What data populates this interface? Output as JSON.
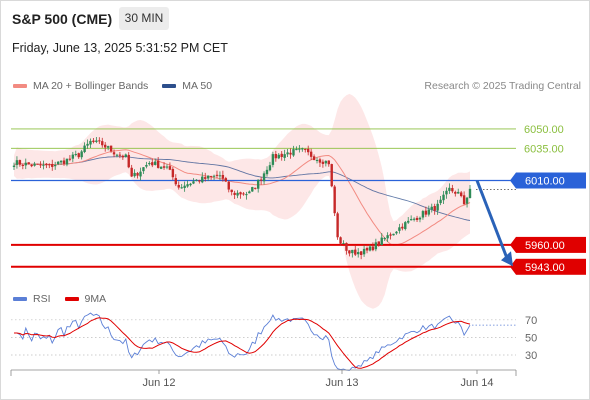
{
  "header": {
    "title": "S&P 500 (CME)",
    "timeframe": "30 MIN"
  },
  "datetime": "Friday, June 13, 2025 5:31:52 PM CET",
  "legend_main": [
    {
      "label": "MA 20 + Bollinger Bands",
      "color": "#f28b82"
    },
    {
      "label": "MA 50",
      "color": "#2d4f8c"
    }
  ],
  "research": "Research © 2025 Trading Central",
  "legend_rsi": [
    {
      "label": "RSI",
      "color": "#5b7fd6"
    },
    {
      "label": "9MA",
      "color": "#e00000"
    }
  ],
  "chart_data": [
    {
      "type": "candlestick",
      "x_ticks": [
        "Jun 12",
        "Jun 13",
        "Jun 14"
      ],
      "levels": [
        {
          "value": 6050.0,
          "label": "6050.00",
          "color": "#8bbf3f",
          "style": "thin"
        },
        {
          "value": 6035.0,
          "label": "6035.00",
          "color": "#8bbf3f",
          "style": "thin"
        },
        {
          "value": 6010.0,
          "label": "6010.00",
          "color": "#2a62d8",
          "style": "current"
        },
        {
          "value": 5960.0,
          "label": "5960.00",
          "color": "#e00000",
          "style": "support"
        },
        {
          "value": 5943.0,
          "label": "5943.00",
          "color": "#e00000",
          "style": "support"
        }
      ],
      "forecast": {
        "from": 6010,
        "to": 5945
      },
      "colors": {
        "up": "#2e8b57",
        "down": "#c62828",
        "bb_fill": "#fde4e4",
        "ma20": "#f28b82",
        "ma50": "#2d4f8c"
      },
      "ylim": [
        5924,
        6072
      ]
    },
    {
      "type": "line",
      "name": "RSI",
      "y_ticks": [
        70,
        50,
        30
      ],
      "ylim": [
        22,
        82
      ]
    }
  ]
}
